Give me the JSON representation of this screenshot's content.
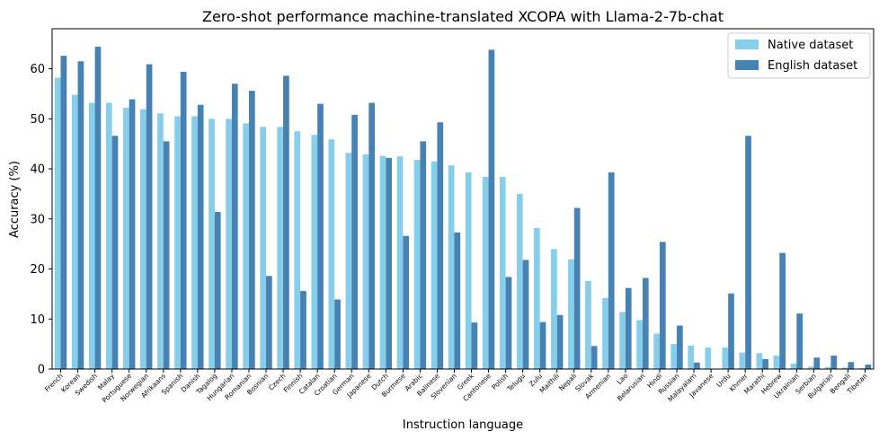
{
  "chart_data": {
    "type": "bar",
    "title": "Zero-shot performance machine-translated XCOPA with Llama-2-7b-chat",
    "xlabel": "Instruction language",
    "ylabel": "Accuracy (%)",
    "ylim": [
      0,
      68
    ],
    "yticks": [
      0,
      10,
      20,
      30,
      40,
      50,
      60
    ],
    "grid": false,
    "legend_position": "top-right",
    "categories": [
      "French",
      "Korean",
      "Swedish",
      "Malay",
      "Portuguese",
      "Norwegian",
      "Afrikaans",
      "Spanish",
      "Danish",
      "Tagalog",
      "Hungarian",
      "Romanian",
      "Bosnian",
      "Czech",
      "Finnish",
      "Catalan",
      "Croatian",
      "German",
      "Japanese",
      "Dutch",
      "Burmese",
      "Arabic",
      "Balinese",
      "Slovenian",
      "Greek",
      "Cantonese",
      "Polish",
      "Telugu",
      "Zulu",
      "Maithili",
      "Nepali",
      "Slovak",
      "Armenian",
      "Lao",
      "Belarusian",
      "Hindi",
      "Russian",
      "Malayalam",
      "Javanese",
      "Urdu",
      "Khmer",
      "Marathi",
      "Hebrew",
      "Ukrainian",
      "Serbian",
      "Bulgarian",
      "Bengali",
      "Tibetan"
    ],
    "series": [
      {
        "name": "Native dataset",
        "color": "#87ceeb",
        "values": [
          58.2,
          54.8,
          53.2,
          53.2,
          52.2,
          51.9,
          51.1,
          50.5,
          50.5,
          50.0,
          50.0,
          49.1,
          48.4,
          48.4,
          47.5,
          46.8,
          45.9,
          43.2,
          42.9,
          42.6,
          42.5,
          41.8,
          41.5,
          40.7,
          39.3,
          38.4,
          38.4,
          35.0,
          28.2,
          24.0,
          21.9,
          17.6,
          14.2,
          11.4,
          9.8,
          7.1,
          5.0,
          4.7,
          4.3,
          4.3,
          3.3,
          3.2,
          2.7,
          1.1,
          0.5,
          0.4,
          0.3,
          0.2
        ]
      },
      {
        "name": "English dataset",
        "color": "#4682b4",
        "values": [
          62.6,
          61.5,
          64.4,
          46.6,
          53.9,
          60.9,
          45.5,
          59.4,
          52.8,
          31.4,
          57.0,
          55.6,
          18.6,
          58.6,
          15.6,
          53.0,
          13.9,
          50.8,
          53.2,
          42.2,
          26.6,
          45.5,
          49.3,
          27.3,
          9.3,
          63.8,
          18.4,
          21.8,
          9.4,
          10.8,
          32.2,
          4.6,
          39.3,
          16.2,
          18.2,
          25.4,
          8.7,
          1.3,
          0.0,
          15.1,
          46.6,
          2.0,
          23.2,
          11.1,
          2.3,
          2.7,
          1.4,
          0.9
        ]
      }
    ]
  }
}
